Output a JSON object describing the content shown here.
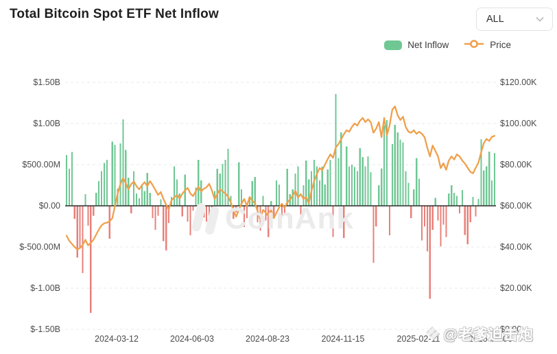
{
  "header": {
    "title": "Total Bitcoin Spot ETF Net Inflow",
    "range_selector": {
      "value": "ALL",
      "icon": "chevron-down-icon"
    }
  },
  "legend": {
    "net_inflow_label": "Net Inflow",
    "price_label": "Price"
  },
  "watermarks": {
    "center": "CoinAnk",
    "bottom_right": "@老爹迫击炮",
    "icon": "coinank-diamond-icon"
  },
  "chart_data": {
    "type": "bar",
    "subtype": "combo bar+line, dual y-axis",
    "title": "Total Bitcoin Spot ETF Net Inflow",
    "legend_position": "top-right",
    "grid": "horizontal dashed",
    "x_axis": {
      "start_date": "2024-01-16",
      "end_date": "2025-05-06",
      "point_step_days": 3,
      "tick_labels": [
        "2024-03-12",
        "2024-06-03",
        "2024-08-23",
        "2024-11-15",
        "2025-02-11",
        "2025-05-06"
      ]
    },
    "y_axis_left": {
      "title": "Net Inflow",
      "range_musd": [
        -1500,
        1500
      ],
      "tick_labels": [
        "$1.50B",
        "$1.00B",
        "$500.00M",
        "$0.00",
        "$-500.00M",
        "$-1.00B",
        "$-1.50B"
      ]
    },
    "y_axis_right": {
      "title": "Price",
      "range_kusd": [
        0,
        120
      ],
      "tick_labels": [
        "$120.00K",
        "$100.00K",
        "$80.00K",
        "$60.00K",
        "$40.00K",
        "$20.00K",
        "$0.00"
      ]
    },
    "colors": {
      "inflow_positive": "#6fc794",
      "inflow_negative": "#e8807a",
      "price_line": "#efa04b",
      "zero_line": "#2d2d2d",
      "gridline": "#e9e9e9"
    },
    "series": [
      {
        "name": "Net Inflow",
        "type": "bar",
        "unit": "million USD",
        "values": [
          615,
          450,
          655,
          -160,
          -630,
          -520,
          -815,
          140,
          -240,
          -1300,
          -120,
          160,
          300,
          420,
          520,
          560,
          -400,
          780,
          740,
          210,
          760,
          1050,
          680,
          340,
          -90,
          420,
          150,
          90,
          260,
          180,
          400,
          160,
          -150,
          -290,
          -120,
          80,
          -430,
          -540,
          -210,
          110,
          480,
          320,
          150,
          -130,
          380,
          -190,
          -360,
          -60,
          220,
          560,
          310,
          -140,
          -190,
          -120,
          -310,
          180,
          450,
          390,
          510,
          560,
          690,
          120,
          -160,
          -80,
          530,
          200,
          -260,
          -150,
          90,
          300,
          350,
          -200,
          -300,
          120,
          -180,
          -380,
          60,
          -150,
          310,
          260,
          -140,
          -90,
          450,
          140,
          200,
          390,
          480,
          -110,
          250,
          550,
          320,
          420,
          560,
          480,
          310,
          475,
          260,
          440,
          560,
          -380,
          1360,
          580,
          890,
          -390,
          720,
          480,
          500,
          470,
          420,
          700,
          590,
          480,
          600,
          410,
          -690,
          -250,
          250,
          455,
          975,
          1040,
          -360,
          750,
          985,
          890,
          805,
          770,
          420,
          280,
          -150,
          200,
          580,
          330,
          -420,
          -250,
          -555,
          -1130,
          -290,
          95,
          -180,
          -490,
          -230,
          -380,
          150,
          250,
          160,
          120,
          -90,
          190,
          -355,
          -465,
          -200,
          110,
          -130,
          85,
          810,
          430,
          480,
          660,
          310,
          640
        ]
      },
      {
        "name": "Price",
        "type": "line",
        "unit": "thousand USD",
        "values": [
          45.5,
          43,
          41.5,
          40,
          38.8,
          39.5,
          41,
          43.5,
          40.8,
          42,
          43.5,
          46,
          48.5,
          50.5,
          51.5,
          51.8,
          52.5,
          54,
          60,
          66,
          70.5,
          73.5,
          71,
          68,
          70.5,
          71.8,
          69.5,
          68,
          70,
          71.5,
          69.5,
          72,
          70,
          67.7,
          65.3,
          66.7,
          63.3,
          60.5,
          58.3,
          62.7,
          64,
          65.3,
          63.5,
          65.8,
          67.5,
          68.7,
          66,
          64.7,
          67,
          69.3,
          67,
          68.3,
          69,
          70.7,
          67.5,
          63.3,
          65.7,
          68,
          67,
          66,
          64.5,
          61.7,
          57.7,
          54.7,
          58,
          61,
          63.3,
          60,
          64.3,
          62.5,
          61.3,
          57.3,
          53.3,
          58,
          56.7,
          55,
          58.3,
          54,
          56.7,
          59.3,
          61,
          59,
          61.7,
          63,
          65,
          67.3,
          64,
          65.7,
          63.3,
          64.3,
          61.3,
          67.3,
          72,
          75.5,
          78.3,
          77.3,
          80,
          82.7,
          85,
          83.3,
          88.3,
          90,
          92.3,
          94.7,
          96.7,
          96,
          98.3,
          100,
          99,
          101.3,
          102.7,
          100.7,
          102,
          100.7,
          95.5,
          97.5,
          100.7,
          93.3,
          102.7,
          94.3,
          99,
          106.7,
          108.3,
          104,
          101.7,
          103.3,
          98.3,
          96,
          95.5,
          96.7,
          95,
          96,
          95,
          93.3,
          88.3,
          84,
          89.3,
          86.7,
          84,
          78.3,
          80.7,
          77.5,
          82,
          84,
          82.5,
          85,
          84,
          82,
          80.5,
          78.5,
          76.5,
          75.8,
          78.5,
          81,
          86,
          90.5,
          92.5,
          91.5,
          93.5,
          94
        ]
      }
    ]
  }
}
